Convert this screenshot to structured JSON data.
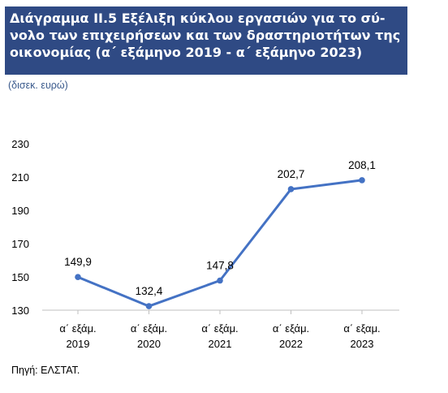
{
  "header": {
    "title": "Διάγραμμα ΙΙ.5 Εξέλιξη κύκλου εργασιών για το σύ-\nνολο των επιχειρήσεων και των δραστηριοτήτων της\nοικονομίας (α΄ εξάμηνο 2019 - α΄ εξάμηνο 2023)",
    "unit": "(δισεκ. ευρώ)"
  },
  "footer": {
    "source": "Πηγή: ΕΛΣΤΑΤ."
  },
  "colors": {
    "title_background": "#2f4a84",
    "line": "#4472c4",
    "unit_text": "#3a5a8c"
  },
  "chart_data": {
    "type": "line",
    "categories": [
      [
        "α΄ εξάμ.",
        "2019"
      ],
      [
        "α΄ εξάμ.",
        "2020"
      ],
      [
        "α΄ εξάμ.",
        "2021"
      ],
      [
        "α΄ εξάμ.",
        "2022"
      ],
      [
        "α΄ εξαμ.",
        "2023"
      ]
    ],
    "values": [
      149.9,
      132.4,
      147.8,
      202.7,
      208.1
    ],
    "data_labels": [
      "149,9",
      "132,4",
      "147,8",
      "202,7",
      "208,1"
    ],
    "yticks": [
      130,
      150,
      170,
      190,
      210,
      230
    ],
    "ytick_labels": [
      "130",
      "150",
      "170",
      "190",
      "210",
      "230"
    ],
    "ylim": [
      130,
      230
    ],
    "grid": false,
    "legend": "none"
  }
}
